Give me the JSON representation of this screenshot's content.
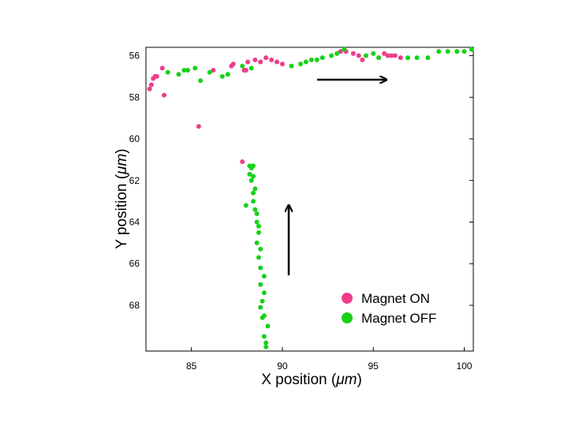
{
  "chart_data": {
    "type": "scatter",
    "title": "",
    "xlabel_prefix": "X position (",
    "xlabel_unit": "μm",
    "xlabel_suffix": ")",
    "ylabel_prefix": "Y position (",
    "ylabel_unit": "μm",
    "ylabel_suffix": ")",
    "xlim": [
      82.5,
      100.5
    ],
    "ylim": [
      55.6,
      70.2
    ],
    "y_inverted": true,
    "x_ticks": [
      85,
      90,
      95,
      100
    ],
    "x_tick_labels": [
      "85",
      "90",
      "95",
      "100"
    ],
    "y_ticks": [
      56,
      58,
      60,
      62,
      64,
      66,
      68
    ],
    "y_tick_labels": [
      "56",
      "58",
      "60",
      "62",
      "64",
      "66",
      "68"
    ],
    "grid": false,
    "legend_position": "bottom-right",
    "series": [
      {
        "name": "Magnet ON",
        "color": "#ee3d8c",
        "points": [
          [
            82.7,
            57.6
          ],
          [
            82.8,
            57.4
          ],
          [
            82.9,
            57.1
          ],
          [
            83.0,
            57.0
          ],
          [
            83.1,
            57.0
          ],
          [
            83.4,
            56.6
          ],
          [
            83.5,
            57.9
          ],
          [
            85.4,
            59.4
          ],
          [
            86.2,
            56.7
          ],
          [
            87.2,
            56.5
          ],
          [
            87.3,
            56.4
          ],
          [
            87.9,
            56.7
          ],
          [
            88.0,
            56.7
          ],
          [
            88.1,
            56.3
          ],
          [
            88.5,
            56.2
          ],
          [
            88.8,
            56.3
          ],
          [
            89.1,
            56.1
          ],
          [
            89.4,
            56.2
          ],
          [
            89.7,
            56.3
          ],
          [
            90.0,
            56.4
          ],
          [
            93.2,
            55.8
          ],
          [
            93.5,
            55.8
          ],
          [
            93.9,
            55.9
          ],
          [
            94.2,
            56.0
          ],
          [
            94.4,
            56.2
          ],
          [
            95.3,
            56.1
          ],
          [
            95.6,
            55.9
          ],
          [
            95.8,
            56.0
          ],
          [
            96.0,
            56.0
          ],
          [
            96.2,
            56.0
          ],
          [
            96.5,
            56.1
          ],
          [
            87.8,
            61.1
          ]
        ]
      },
      {
        "name": "Magnet OFF",
        "color": "#19d119",
        "points": [
          [
            83.7,
            56.8
          ],
          [
            84.3,
            56.9
          ],
          [
            84.6,
            56.7
          ],
          [
            84.8,
            56.7
          ],
          [
            85.2,
            56.6
          ],
          [
            85.5,
            57.2
          ],
          [
            86.0,
            56.8
          ],
          [
            86.7,
            57.0
          ],
          [
            87.0,
            56.9
          ],
          [
            87.8,
            56.5
          ],
          [
            88.3,
            56.6
          ],
          [
            90.5,
            56.5
          ],
          [
            91.0,
            56.4
          ],
          [
            91.3,
            56.3
          ],
          [
            91.6,
            56.2
          ],
          [
            91.9,
            56.2
          ],
          [
            92.2,
            56.1
          ],
          [
            92.7,
            56.0
          ],
          [
            93.0,
            55.9
          ],
          [
            93.4,
            55.7
          ],
          [
            94.6,
            56.0
          ],
          [
            95.0,
            55.9
          ],
          [
            95.3,
            56.1
          ],
          [
            96.9,
            56.1
          ],
          [
            97.4,
            56.1
          ],
          [
            98.0,
            56.1
          ],
          [
            98.6,
            55.8
          ],
          [
            99.1,
            55.8
          ],
          [
            99.6,
            55.8
          ],
          [
            100.0,
            55.8
          ],
          [
            100.4,
            55.7
          ],
          [
            88.2,
            61.3
          ],
          [
            88.4,
            61.3
          ],
          [
            88.3,
            61.4
          ],
          [
            88.2,
            61.7
          ],
          [
            88.4,
            61.8
          ],
          [
            88.3,
            62.0
          ],
          [
            88.5,
            62.4
          ],
          [
            88.4,
            62.6
          ],
          [
            88.0,
            63.2
          ],
          [
            88.4,
            63.0
          ],
          [
            88.5,
            63.4
          ],
          [
            88.6,
            63.6
          ],
          [
            88.6,
            64.0
          ],
          [
            88.7,
            64.2
          ],
          [
            88.7,
            64.5
          ],
          [
            88.6,
            65.0
          ],
          [
            88.8,
            65.3
          ],
          [
            88.7,
            65.7
          ],
          [
            88.8,
            66.2
          ],
          [
            89.0,
            66.6
          ],
          [
            88.8,
            67.0
          ],
          [
            89.0,
            67.4
          ],
          [
            88.9,
            67.8
          ],
          [
            88.8,
            68.1
          ],
          [
            89.0,
            68.5
          ],
          [
            88.9,
            68.6
          ],
          [
            89.2,
            69.0
          ],
          [
            89.0,
            69.5
          ],
          [
            89.1,
            69.8
          ],
          [
            89.1,
            70.0
          ]
        ]
      }
    ]
  }
}
